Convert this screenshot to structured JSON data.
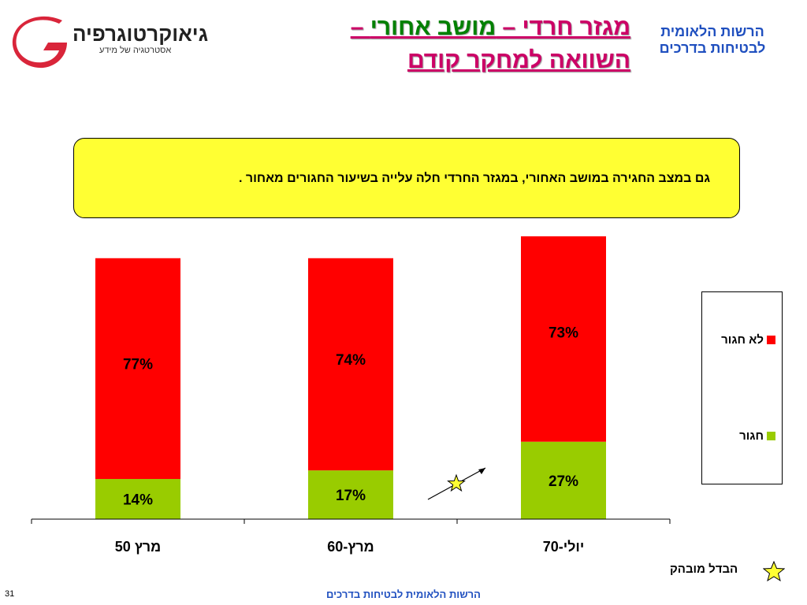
{
  "header": {
    "title_line1_part1": "מגזר חרדי – ",
    "title_line1_part2": "מושב אחורי",
    "title_line1_part3": " –",
    "title_line2": "השוואה למחקר קודם",
    "org_line1": "הרשות הלאומית",
    "org_line2": "לבטיחות בדרכים"
  },
  "logo": {
    "name": "גיאוקרטוגרפיה",
    "tagline": "אסטרטגיה של מידע",
    "colors": {
      "mark": "#d9253a",
      "dark": "#4a4a4a"
    }
  },
  "note": {
    "text": "גם במצב החגירה במושב האחורי, במגזר החרדי חלה עלייה בשיעור החגורים מאחור ."
  },
  "chart_data": {
    "type": "bar",
    "stacked": true,
    "categories": [
      "מרץ 50",
      "מרץ-60",
      "יולי-70"
    ],
    "series": [
      {
        "name": "חגור",
        "values": [
          14,
          17,
          27
        ],
        "labels": [
          "14%",
          "17%",
          "27%"
        ],
        "color": "#99cc00"
      },
      {
        "name": "לא חגור",
        "values": [
          77,
          74,
          73
        ],
        "labels": [
          "77%",
          "74%",
          "73%"
        ],
        "color": "#ff0000"
      }
    ],
    "ylim": [
      0,
      100
    ],
    "legend": {
      "position": "right",
      "order": [
        "לא חגור",
        "חגור"
      ]
    },
    "grid": false,
    "annotation": {
      "marker": "star",
      "meaning": "הבדל מובהק",
      "between": [
        "מרץ-60",
        "יולי-70"
      ]
    }
  },
  "legend_note": {
    "label": "הבדל מובהק",
    "icon": "star-icon"
  },
  "footer": {
    "text": "הרשות הלאומית לבטיחות בדרכים",
    "page": "31"
  }
}
